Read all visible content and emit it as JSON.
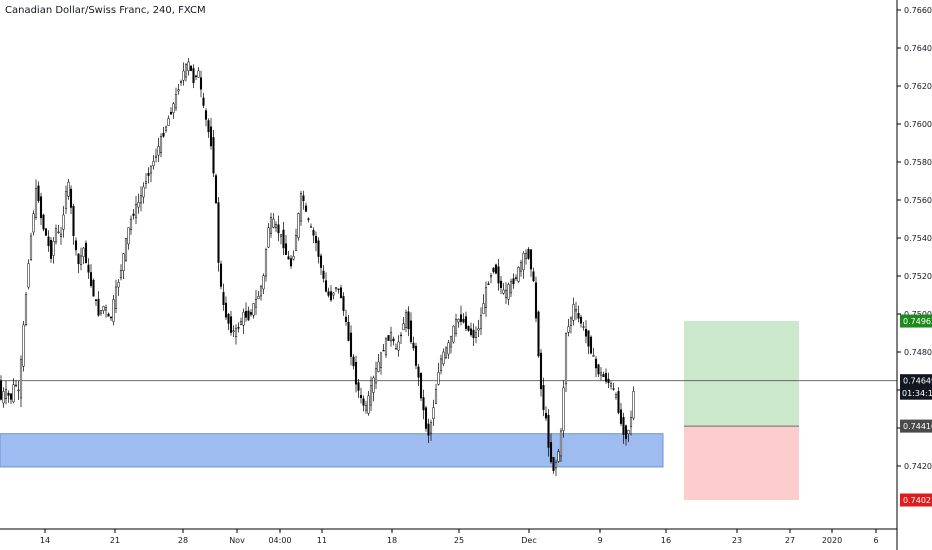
{
  "chart_data": {
    "type": "candlestick",
    "title": "Canadian Dollar/Swiss Franc, 240, FXCM",
    "y_ticks": [
      "0.76600",
      "0.76400",
      "0.76200",
      "0.76000",
      "0.75800",
      "0.75600",
      "0.75400",
      "0.75200",
      "0.75000",
      "0.74800",
      "0.74600",
      "0.74400",
      "0.74200"
    ],
    "y_tick_values": [
      0.766,
      0.764,
      0.762,
      0.76,
      0.758,
      0.756,
      0.754,
      0.752,
      0.75,
      0.748,
      0.746,
      0.744,
      0.742
    ],
    "x_ticks": [
      "14",
      "21",
      "28",
      "Nov",
      "04:00",
      "11",
      "18",
      "25",
      "Dec",
      "9",
      "16",
      "23",
      "27",
      "2020",
      "6"
    ],
    "current_price": "0.74649",
    "current_price_value": 0.74649,
    "countdown": "01:34:13",
    "target_price": "0.74963",
    "target_price_value": 0.74963,
    "entry_price": "0.74410",
    "entry_price_value": 0.7441,
    "stop_price": "0.74021",
    "stop_price_value": 0.74021,
    "demand_zone": [
      0.74195,
      0.7437
    ],
    "path_points": [
      [
        0,
        0.7452
      ],
      [
        6,
        0.746
      ],
      [
        12,
        0.7455
      ],
      [
        16,
        0.7465
      ],
      [
        20,
        0.7458
      ],
      [
        25,
        0.7495
      ],
      [
        30,
        0.753
      ],
      [
        35,
        0.7555
      ],
      [
        38,
        0.7568
      ],
      [
        43,
        0.7548
      ],
      [
        48,
        0.754
      ],
      [
        52,
        0.753
      ],
      [
        57,
        0.7545
      ],
      [
        62,
        0.754
      ],
      [
        67,
        0.7565
      ],
      [
        70,
        0.7568
      ],
      [
        74,
        0.7545
      ],
      [
        79,
        0.7525
      ],
      [
        85,
        0.7535
      ],
      [
        90,
        0.752
      ],
      [
        95,
        0.751
      ],
      [
        100,
        0.75
      ],
      [
        106,
        0.7505
      ],
      [
        111,
        0.7495
      ],
      [
        116,
        0.751
      ],
      [
        121,
        0.752
      ],
      [
        126,
        0.7535
      ],
      [
        131,
        0.7548
      ],
      [
        136,
        0.7555
      ],
      [
        141,
        0.756
      ],
      [
        145,
        0.7567
      ],
      [
        150,
        0.7575
      ],
      [
        156,
        0.7582
      ],
      [
        161,
        0.759
      ],
      [
        166,
        0.7597
      ],
      [
        171,
        0.7605
      ],
      [
        176,
        0.7612
      ],
      [
        180,
        0.762
      ],
      [
        185,
        0.7628
      ],
      [
        190,
        0.7632
      ],
      [
        195,
        0.7622
      ],
      [
        199,
        0.763
      ],
      [
        204,
        0.761
      ],
      [
        208,
        0.76
      ],
      [
        213,
        0.7588
      ],
      [
        217,
        0.756
      ],
      [
        220,
        0.7525
      ],
      [
        224,
        0.7505
      ],
      [
        228,
        0.7498
      ],
      [
        232,
        0.7492
      ],
      [
        236,
        0.749
      ],
      [
        241,
        0.7495
      ],
      [
        245,
        0.75
      ],
      [
        250,
        0.7498
      ],
      [
        255,
        0.7505
      ],
      [
        260,
        0.751
      ],
      [
        265,
        0.752
      ],
      [
        269,
        0.7545
      ],
      [
        273,
        0.755
      ],
      [
        278,
        0.7545
      ],
      [
        283,
        0.754
      ],
      [
        288,
        0.753
      ],
      [
        293,
        0.7525
      ],
      [
        298,
        0.7545
      ],
      [
        303,
        0.7565
      ],
      [
        307,
        0.7553
      ],
      [
        312,
        0.7545
      ],
      [
        317,
        0.7538
      ],
      [
        322,
        0.7525
      ],
      [
        327,
        0.7512
      ],
      [
        332,
        0.7508
      ],
      [
        337,
        0.7515
      ],
      [
        342,
        0.751
      ],
      [
        347,
        0.7495
      ],
      [
        352,
        0.748
      ],
      [
        357,
        0.7465
      ],
      [
        362,
        0.7455
      ],
      [
        367,
        0.745
      ],
      [
        372,
        0.746
      ],
      [
        377,
        0.747
      ],
      [
        382,
        0.7478
      ],
      [
        387,
        0.7485
      ],
      [
        392,
        0.749
      ],
      [
        397,
        0.748
      ],
      [
        402,
        0.749
      ],
      [
        407,
        0.75
      ],
      [
        411,
        0.749
      ],
      [
        416,
        0.7478
      ],
      [
        420,
        0.7465
      ],
      [
        425,
        0.7448
      ],
      [
        429,
        0.7435
      ],
      [
        433,
        0.7445
      ],
      [
        437,
        0.746
      ],
      [
        441,
        0.7475
      ],
      [
        446,
        0.748
      ],
      [
        451,
        0.7485
      ],
      [
        456,
        0.7495
      ],
      [
        461,
        0.7498
      ],
      [
        466,
        0.7495
      ],
      [
        471,
        0.749
      ],
      [
        476,
        0.7488
      ],
      [
        481,
        0.7495
      ],
      [
        486,
        0.751
      ],
      [
        491,
        0.752
      ],
      [
        496,
        0.7525
      ],
      [
        501,
        0.7515
      ],
      [
        506,
        0.751
      ],
      [
        511,
        0.7515
      ],
      [
        516,
        0.7518
      ],
      [
        521,
        0.7525
      ],
      [
        526,
        0.7532
      ],
      [
        531,
        0.753
      ],
      [
        535,
        0.7515
      ],
      [
        539,
        0.7485
      ],
      [
        543,
        0.7455
      ],
      [
        547,
        0.7445
      ],
      [
        551,
        0.7425
      ],
      [
        555,
        0.7418
      ],
      [
        559,
        0.7425
      ],
      [
        563,
        0.744
      ],
      [
        567,
        0.749
      ],
      [
        571,
        0.7495
      ],
      [
        575,
        0.7505
      ],
      [
        579,
        0.7498
      ],
      [
        583,
        0.7495
      ],
      [
        588,
        0.7487
      ],
      [
        593,
        0.748
      ],
      [
        598,
        0.747
      ],
      [
        603,
        0.7468
      ],
      [
        608,
        0.7465
      ],
      [
        613,
        0.7462
      ],
      [
        618,
        0.7455
      ],
      [
        623,
        0.744
      ],
      [
        628,
        0.7435
      ],
      [
        632,
        0.7445
      ],
      [
        636,
        0.7465
      ]
    ]
  }
}
